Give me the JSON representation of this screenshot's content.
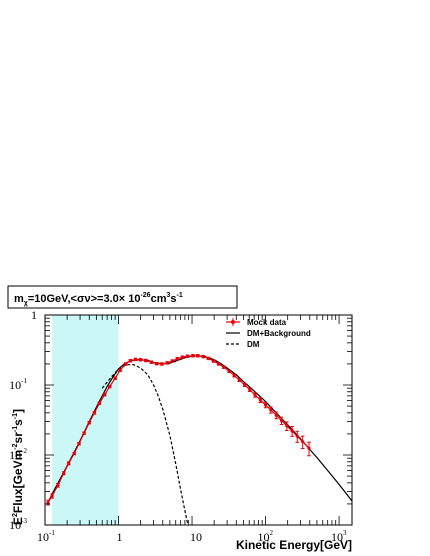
{
  "chart_data": {
    "type": "line",
    "title_parts": {
      "m": "m",
      "chi": "χ",
      "mass": "=10GeV,<σν>=3.0× 10",
      "exp1": "-26",
      "unit1": "cm",
      "exp2": "3",
      "unit2": "s",
      "exp3": "-1"
    },
    "xlabel": "Kinetic Energy[GeV]",
    "ylabel_parts": {
      "e": "E",
      "e_exp": "2",
      "flux": "Flux[GeVm",
      "m_exp": "-2",
      "sr": "sr",
      "sr_exp": "-1",
      "s": "s",
      "s_exp": "-1",
      "close": "]"
    },
    "x_scale": "log",
    "y_scale": "log",
    "xlim": [
      0.1,
      1500
    ],
    "ylim": [
      0.001,
      1
    ],
    "x_ticks": [
      {
        "base": "10",
        "exp": "-1",
        "value": 0.1
      },
      {
        "base": "1",
        "exp": "",
        "value": 1
      },
      {
        "base": "10",
        "exp": "",
        "value": 10
      },
      {
        "base": "10",
        "exp": "2",
        "value": 100
      },
      {
        "base": "10",
        "exp": "3",
        "value": 1000
      }
    ],
    "y_ticks": [
      {
        "base": "10",
        "exp": "-3",
        "value": 0.001
      },
      {
        "base": "10",
        "exp": "-2",
        "value": 0.01
      },
      {
        "base": "10",
        "exp": "-1",
        "value": 0.1
      },
      {
        "base": "1",
        "exp": "",
        "value": 1
      }
    ],
    "shaded_region": {
      "x_from": 0.125,
      "x_to": 1.0,
      "color": "#ccf7f7"
    },
    "legend": {
      "placement": "top-right",
      "entries": [
        {
          "label": "Mock data",
          "style": "marker",
          "color": "#e8000b"
        },
        {
          "label": "DM+Background",
          "style": "solid",
          "color": "#000000"
        },
        {
          "label": "DM",
          "style": "dashed",
          "color": "#000000"
        }
      ]
    },
    "series": [
      {
        "name": "DM+Background",
        "style": "solid",
        "color": "#000000",
        "x": [
          0.11,
          0.13,
          0.16,
          0.2,
          0.25,
          0.3,
          0.4,
          0.5,
          0.6,
          0.7,
          0.8,
          1.0,
          1.2,
          1.5,
          2.0,
          2.5,
          3.0,
          4.0,
          5.0,
          6.0,
          8.0,
          10.0,
          12.0,
          15.0,
          20.0,
          25.0,
          30.0,
          40.0,
          50.0,
          60.0,
          80.0,
          100.0,
          150.0,
          200.0,
          300.0,
          400.0,
          500.0,
          700.0,
          1000.0,
          1500.0
        ],
        "y": [
          0.0021,
          0.003,
          0.0045,
          0.007,
          0.011,
          0.016,
          0.03,
          0.048,
          0.07,
          0.095,
          0.12,
          0.17,
          0.2,
          0.225,
          0.23,
          0.225,
          0.21,
          0.2,
          0.205,
          0.22,
          0.245,
          0.26,
          0.262,
          0.255,
          0.23,
          0.2,
          0.175,
          0.14,
          0.112,
          0.095,
          0.072,
          0.058,
          0.037,
          0.027,
          0.017,
          0.012,
          0.0092,
          0.006,
          0.0038,
          0.0022
        ]
      },
      {
        "name": "DM",
        "style": "dashed",
        "color": "#000000",
        "x": [
          0.6,
          0.8,
          1.0,
          1.3,
          1.6,
          2.0,
          2.5,
          3.0,
          3.5,
          4.0,
          5.0,
          6.0,
          7.0,
          8.0,
          9.0
        ],
        "y": [
          0.09,
          0.13,
          0.17,
          0.195,
          0.195,
          0.175,
          0.14,
          0.1,
          0.068,
          0.045,
          0.019,
          0.0075,
          0.0032,
          0.0016,
          0.0009
        ]
      },
      {
        "name": "Mock data",
        "style": "marker",
        "color": "#e8000b",
        "x": [
          0.11,
          0.125,
          0.15,
          0.18,
          0.21,
          0.25,
          0.29,
          0.34,
          0.4,
          0.47,
          0.55,
          0.65,
          0.76,
          0.9,
          1.05,
          1.25,
          1.45,
          1.7,
          2.0,
          2.35,
          2.8,
          3.3,
          3.9,
          4.6,
          5.4,
          6.3,
          7.4,
          8.7,
          10.3,
          12.0,
          14.2,
          16.7,
          19.6,
          23.0,
          27.0,
          32.0,
          37.5,
          44.0,
          52.0,
          61.0,
          72.0,
          85.0,
          100.0,
          118.0,
          140.0,
          165.0,
          195.0,
          230.0,
          270.0,
          320.0,
          390.0
        ],
        "y": [
          0.0021,
          0.0026,
          0.0037,
          0.0055,
          0.0076,
          0.0105,
          0.0145,
          0.0205,
          0.029,
          0.04,
          0.055,
          0.073,
          0.095,
          0.125,
          0.162,
          0.2,
          0.222,
          0.232,
          0.23,
          0.224,
          0.212,
          0.202,
          0.2,
          0.207,
          0.22,
          0.237,
          0.25,
          0.258,
          0.262,
          0.262,
          0.255,
          0.24,
          0.22,
          0.2,
          0.18,
          0.157,
          0.137,
          0.118,
          0.1,
          0.086,
          0.072,
          0.061,
          0.052,
          0.044,
          0.037,
          0.031,
          0.026,
          0.022,
          0.0185,
          0.0155,
          0.0125
        ],
        "err_frac": [
          0.08,
          0.07,
          0.06,
          0.05,
          0.05,
          0.04,
          0.04,
          0.04,
          0.04,
          0.04,
          0.04,
          0.04,
          0.04,
          0.04,
          0.04,
          0.04,
          0.04,
          0.04,
          0.04,
          0.04,
          0.04,
          0.04,
          0.04,
          0.04,
          0.04,
          0.04,
          0.04,
          0.04,
          0.04,
          0.04,
          0.04,
          0.04,
          0.04,
          0.04,
          0.04,
          0.04,
          0.05,
          0.05,
          0.05,
          0.06,
          0.07,
          0.08,
          0.09,
          0.1,
          0.11,
          0.12,
          0.14,
          0.16,
          0.18,
          0.2,
          0.22
        ]
      }
    ]
  }
}
